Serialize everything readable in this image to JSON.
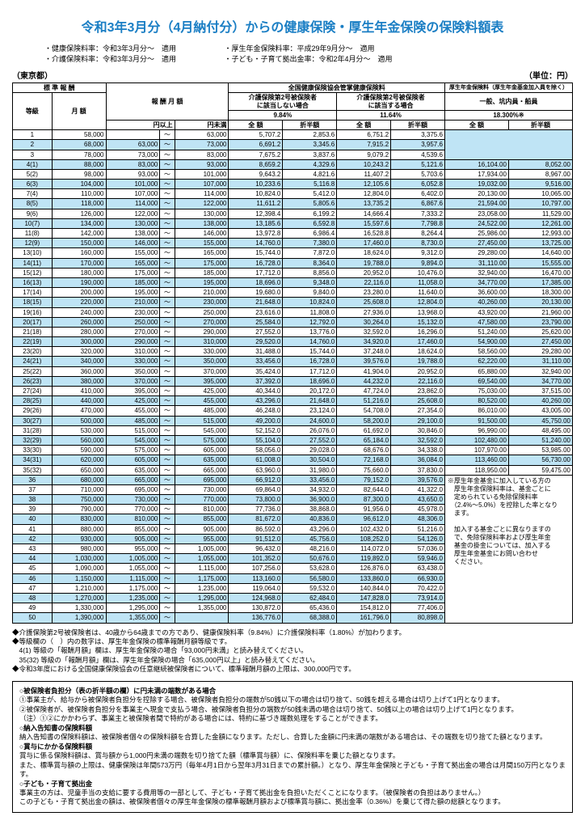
{
  "title": "令和3年3月分（4月納付分）からの健康保険・厚生年金保険の保険料額表",
  "topNotes": {
    "left": [
      "・健康保険料率：令和3年3月分～　適用",
      "・介護保険料率：令和3年3月分～　適用"
    ],
    "right": [
      "・厚生年金保険料率：平成29年9月分～　適用",
      "・子ども・子育て拠出金率：令和2年4月分～　適用"
    ]
  },
  "region": "（東京都）",
  "unit": "（単位：円）",
  "headers": {
    "std": "標 準 報 酬",
    "grade": "等級",
    "monthly": "月 額",
    "range": "報 酬 月 額",
    "kenpo": "全国健康保険協会管掌健康保険料",
    "noCare": "介護保険第2号被保険者\nに該当しない場合",
    "withCare": "介護保険第2号被保険者\nに該当する場合",
    "pension": "厚生年金保険料（厚生年金基金加入員を除く）",
    "general": "一般、坑内員・船員",
    "rate1": "9.84%",
    "rate2": "11.64%",
    "rate3": "18.300%※",
    "full": "全 額",
    "half": "折半額",
    "from": "円以上",
    "to": "円未満"
  },
  "rows": [
    {
      "g": "1",
      "m": "58,000",
      "f": "",
      "t": "63,000",
      "a": "5,707.2",
      "b": "2,853.6",
      "c": "6,751.2",
      "d": "3,375.6",
      "e": "",
      "h": ""
    },
    {
      "g": "2",
      "m": "68,000",
      "f": "63,000",
      "t": "73,000",
      "a": "6,691.2",
      "b": "3,345.6",
      "c": "7,915.2",
      "d": "3,957.6",
      "e": "",
      "h": ""
    },
    {
      "g": "3",
      "m": "78,000",
      "f": "73,000",
      "t": "83,000",
      "a": "7,675.2",
      "b": "3,837.6",
      "c": "9,079.2",
      "d": "4,539.6",
      "e": "",
      "h": ""
    },
    {
      "g": "4(1)",
      "m": "88,000",
      "f": "83,000",
      "t": "93,000",
      "a": "8,659.2",
      "b": "4,329.6",
      "c": "10,243.2",
      "d": "5,121.6",
      "e": "16,104.00",
      "h": "8,052.00"
    },
    {
      "g": "5(2)",
      "m": "98,000",
      "f": "93,000",
      "t": "101,000",
      "a": "9,643.2",
      "b": "4,821.6",
      "c": "11,407.2",
      "d": "5,703.6",
      "e": "17,934.00",
      "h": "8,967.00"
    },
    {
      "g": "6(3)",
      "m": "104,000",
      "f": "101,000",
      "t": "107,000",
      "a": "10,233.6",
      "b": "5,116.8",
      "c": "12,105.6",
      "d": "6,052.8",
      "e": "19,032.00",
      "h": "9,516.00"
    },
    {
      "g": "7(4)",
      "m": "110,000",
      "f": "107,000",
      "t": "114,000",
      "a": "10,824.0",
      "b": "5,412.0",
      "c": "12,804.0",
      "d": "6,402.0",
      "e": "20,130.00",
      "h": "10,065.00"
    },
    {
      "g": "8(5)",
      "m": "118,000",
      "f": "114,000",
      "t": "122,000",
      "a": "11,611.2",
      "b": "5,805.6",
      "c": "13,735.2",
      "d": "6,867.6",
      "e": "21,594.00",
      "h": "10,797.00"
    },
    {
      "g": "9(6)",
      "m": "126,000",
      "f": "122,000",
      "t": "130,000",
      "a": "12,398.4",
      "b": "6,199.2",
      "c": "14,666.4",
      "d": "7,333.2",
      "e": "23,058.00",
      "h": "11,529.00"
    },
    {
      "g": "10(7)",
      "m": "134,000",
      "f": "130,000",
      "t": "138,000",
      "a": "13,185.6",
      "b": "6,592.8",
      "c": "15,597.6",
      "d": "7,798.8",
      "e": "24,522.00",
      "h": "12,261.00"
    },
    {
      "g": "11(8)",
      "m": "142,000",
      "f": "138,000",
      "t": "146,000",
      "a": "13,972.8",
      "b": "6,986.4",
      "c": "16,528.8",
      "d": "8,264.4",
      "e": "25,986.00",
      "h": "12,993.00"
    },
    {
      "g": "12(9)",
      "m": "150,000",
      "f": "146,000",
      "t": "155,000",
      "a": "14,760.0",
      "b": "7,380.0",
      "c": "17,460.0",
      "d": "8,730.0",
      "e": "27,450.00",
      "h": "13,725.00"
    },
    {
      "g": "13(10)",
      "m": "160,000",
      "f": "155,000",
      "t": "165,000",
      "a": "15,744.0",
      "b": "7,872.0",
      "c": "18,624.0",
      "d": "9,312.0",
      "e": "29,280.00",
      "h": "14,640.00"
    },
    {
      "g": "14(11)",
      "m": "170,000",
      "f": "165,000",
      "t": "175,000",
      "a": "16,728.0",
      "b": "8,364.0",
      "c": "19,788.0",
      "d": "9,894.0",
      "e": "31,110.00",
      "h": "15,555.00"
    },
    {
      "g": "15(12)",
      "m": "180,000",
      "f": "175,000",
      "t": "185,000",
      "a": "17,712.0",
      "b": "8,856.0",
      "c": "20,952.0",
      "d": "10,476.0",
      "e": "32,940.00",
      "h": "16,470.00"
    },
    {
      "g": "16(13)",
      "m": "190,000",
      "f": "185,000",
      "t": "195,000",
      "a": "18,696.0",
      "b": "9,348.0",
      "c": "22,116.0",
      "d": "11,058.0",
      "e": "34,770.00",
      "h": "17,385.00"
    },
    {
      "g": "17(14)",
      "m": "200,000",
      "f": "195,000",
      "t": "210,000",
      "a": "19,680.0",
      "b": "9,840.0",
      "c": "23,280.0",
      "d": "11,640.0",
      "e": "36,600.00",
      "h": "18,300.00"
    },
    {
      "g": "18(15)",
      "m": "220,000",
      "f": "210,000",
      "t": "230,000",
      "a": "21,648.0",
      "b": "10,824.0",
      "c": "25,608.0",
      "d": "12,804.0",
      "e": "40,260.00",
      "h": "20,130.00"
    },
    {
      "g": "19(16)",
      "m": "240,000",
      "f": "230,000",
      "t": "250,000",
      "a": "23,616.0",
      "b": "11,808.0",
      "c": "27,936.0",
      "d": "13,968.0",
      "e": "43,920.00",
      "h": "21,960.00"
    },
    {
      "g": "20(17)",
      "m": "260,000",
      "f": "250,000",
      "t": "270,000",
      "a": "25,584.0",
      "b": "12,792.0",
      "c": "30,264.0",
      "d": "15,132.0",
      "e": "47,580.00",
      "h": "23,790.00"
    },
    {
      "g": "21(18)",
      "m": "280,000",
      "f": "270,000",
      "t": "290,000",
      "a": "27,552.0",
      "b": "13,776.0",
      "c": "32,592.0",
      "d": "16,296.0",
      "e": "51,240.00",
      "h": "25,620.00"
    },
    {
      "g": "22(19)",
      "m": "300,000",
      "f": "290,000",
      "t": "310,000",
      "a": "29,520.0",
      "b": "14,760.0",
      "c": "34,920.0",
      "d": "17,460.0",
      "e": "54,900.00",
      "h": "27,450.00"
    },
    {
      "g": "23(20)",
      "m": "320,000",
      "f": "310,000",
      "t": "330,000",
      "a": "31,488.0",
      "b": "15,744.0",
      "c": "37,248.0",
      "d": "18,624.0",
      "e": "58,560.00",
      "h": "29,280.00"
    },
    {
      "g": "24(21)",
      "m": "340,000",
      "f": "330,000",
      "t": "350,000",
      "a": "33,456.0",
      "b": "16,728.0",
      "c": "39,576.0",
      "d": "19,788.0",
      "e": "62,220.00",
      "h": "31,110.00"
    },
    {
      "g": "25(22)",
      "m": "360,000",
      "f": "350,000",
      "t": "370,000",
      "a": "35,424.0",
      "b": "17,712.0",
      "c": "41,904.0",
      "d": "20,952.0",
      "e": "65,880.00",
      "h": "32,940.00"
    },
    {
      "g": "26(23)",
      "m": "380,000",
      "f": "370,000",
      "t": "395,000",
      "a": "37,392.0",
      "b": "18,696.0",
      "c": "44,232.0",
      "d": "22,116.0",
      "e": "69,540.00",
      "h": "34,770.00"
    },
    {
      "g": "27(24)",
      "m": "410,000",
      "f": "395,000",
      "t": "425,000",
      "a": "40,344.0",
      "b": "20,172.0",
      "c": "47,724.0",
      "d": "23,862.0",
      "e": "75,030.00",
      "h": "37,515.00"
    },
    {
      "g": "28(25)",
      "m": "440,000",
      "f": "425,000",
      "t": "455,000",
      "a": "43,296.0",
      "b": "21,648.0",
      "c": "51,216.0",
      "d": "25,608.0",
      "e": "80,520.00",
      "h": "40,260.00"
    },
    {
      "g": "29(26)",
      "m": "470,000",
      "f": "455,000",
      "t": "485,000",
      "a": "46,248.0",
      "b": "23,124.0",
      "c": "54,708.0",
      "d": "27,354.0",
      "e": "86,010.00",
      "h": "43,005.00"
    },
    {
      "g": "30(27)",
      "m": "500,000",
      "f": "485,000",
      "t": "515,000",
      "a": "49,200.0",
      "b": "24,600.0",
      "c": "58,200.0",
      "d": "29,100.0",
      "e": "91,500.00",
      "h": "45,750.00"
    },
    {
      "g": "31(28)",
      "m": "530,000",
      "f": "515,000",
      "t": "545,000",
      "a": "52,152.0",
      "b": "26,076.0",
      "c": "61,692.0",
      "d": "30,846.0",
      "e": "96,990.00",
      "h": "48,495.00"
    },
    {
      "g": "32(29)",
      "m": "560,000",
      "f": "545,000",
      "t": "575,000",
      "a": "55,104.0",
      "b": "27,552.0",
      "c": "65,184.0",
      "d": "32,592.0",
      "e": "102,480.00",
      "h": "51,240.00"
    },
    {
      "g": "33(30)",
      "m": "590,000",
      "f": "575,000",
      "t": "605,000",
      "a": "58,056.0",
      "b": "29,028.0",
      "c": "68,676.0",
      "d": "34,338.0",
      "e": "107,970.00",
      "h": "53,985.00"
    },
    {
      "g": "34(31)",
      "m": "620,000",
      "f": "605,000",
      "t": "635,000",
      "a": "61,008.0",
      "b": "30,504.0",
      "c": "72,168.0",
      "d": "36,084.0",
      "e": "113,460.00",
      "h": "56,730.00"
    },
    {
      "g": "35(32)",
      "m": "650,000",
      "f": "635,000",
      "t": "665,000",
      "a": "63,960.0",
      "b": "31,980.0",
      "c": "75,660.0",
      "d": "37,830.0",
      "e": "118,950.00",
      "h": "59,475.00"
    },
    {
      "g": "36",
      "m": "680,000",
      "f": "665,000",
      "t": "695,000",
      "a": "66,912.0",
      "b": "33,456.0",
      "c": "79,152.0",
      "d": "39,576.0",
      "e": "",
      "h": ""
    },
    {
      "g": "37",
      "m": "710,000",
      "f": "695,000",
      "t": "730,000",
      "a": "69,864.0",
      "b": "34,932.0",
      "c": "82,644.0",
      "d": "41,322.0",
      "e": "",
      "h": "",
      "sideNote": true
    },
    {
      "g": "38",
      "m": "750,000",
      "f": "730,000",
      "t": "770,000",
      "a": "73,800.0",
      "b": "36,900.0",
      "c": "87,300.0",
      "d": "43,650.0",
      "e": "",
      "h": ""
    },
    {
      "g": "39",
      "m": "790,000",
      "f": "770,000",
      "t": "810,000",
      "a": "77,736.0",
      "b": "38,868.0",
      "c": "91,956.0",
      "d": "45,978.0",
      "e": "",
      "h": ""
    },
    {
      "g": "40",
      "m": "830,000",
      "f": "810,000",
      "t": "855,000",
      "a": "81,672.0",
      "b": "40,836.0",
      "c": "96,612.0",
      "d": "48,306.0",
      "e": "",
      "h": ""
    },
    {
      "g": "41",
      "m": "880,000",
      "f": "855,000",
      "t": "905,000",
      "a": "86,592.0",
      "b": "43,296.0",
      "c": "102,432.0",
      "d": "51,216.0",
      "e": "",
      "h": ""
    },
    {
      "g": "42",
      "m": "930,000",
      "f": "905,000",
      "t": "955,000",
      "a": "91,512.0",
      "b": "45,756.0",
      "c": "108,252.0",
      "d": "54,126.0",
      "e": "",
      "h": ""
    },
    {
      "g": "43",
      "m": "980,000",
      "f": "955,000",
      "t": "1,005,000",
      "a": "96,432.0",
      "b": "48,216.0",
      "c": "114,072.0",
      "d": "57,036.0",
      "e": "",
      "h": ""
    },
    {
      "g": "44",
      "m": "1,030,000",
      "f": "1,005,000",
      "t": "1,055,000",
      "a": "101,352.0",
      "b": "50,676.0",
      "c": "119,892.0",
      "d": "59,946.0",
      "e": "",
      "h": ""
    },
    {
      "g": "45",
      "m": "1,090,000",
      "f": "1,055,000",
      "t": "1,115,000",
      "a": "107,256.0",
      "b": "53,628.0",
      "c": "126,876.0",
      "d": "63,438.0",
      "e": "",
      "h": ""
    },
    {
      "g": "46",
      "m": "1,150,000",
      "f": "1,115,000",
      "t": "1,175,000",
      "a": "113,160.0",
      "b": "56,580.0",
      "c": "133,860.0",
      "d": "66,930.0",
      "e": "",
      "h": ""
    },
    {
      "g": "47",
      "m": "1,210,000",
      "f": "1,175,000",
      "t": "1,235,000",
      "a": "119,064.0",
      "b": "59,532.0",
      "c": "140,844.0",
      "d": "70,422.0",
      "e": "",
      "h": ""
    },
    {
      "g": "48",
      "m": "1,270,000",
      "f": "1,235,000",
      "t": "1,295,000",
      "a": "124,968.0",
      "b": "62,484.0",
      "c": "147,828.0",
      "d": "73,914.0",
      "e": "",
      "h": ""
    },
    {
      "g": "49",
      "m": "1,330,000",
      "f": "1,295,000",
      "t": "1,355,000",
      "a": "130,872.0",
      "b": "65,436.0",
      "c": "154,812.0",
      "d": "77,406.0",
      "e": "",
      "h": ""
    },
    {
      "g": "50",
      "m": "1,390,000",
      "f": "1,355,000",
      "t": "",
      "a": "136,776.0",
      "b": "68,388.0",
      "c": "161,796.0",
      "d": "80,898.0",
      "e": "",
      "h": ""
    }
  ],
  "sideNote": [
    "※厚生年金基金に加入している方の",
    "　厚生年金保険料率は、基金ごとに",
    "　定められている免除保険料率",
    "　（2.4%～5.0%）を控除した率となり",
    "　ます。",
    "",
    "　加入する基金ごとに異なりますの",
    "　で、免除保険料率および厚生年金",
    "　基金の掛金については、加入する",
    "　厚生年金基金にお問い合わせ",
    "　ください。"
  ],
  "diamonds": [
    "◆介護保険第2号被保険者は、40歳から64歳までの方であり、健康保険料率（9.84%）に介護保険料率（1.80%）が加わります。",
    "◆等級欄の（　）内の数字は、厚生年金保険の標準報酬月額等級です。",
    "　4(1) 等級の「報酬月額」欄は、厚生年金保険の場合「93,000円未満」と読み替えてください。",
    "　35(32) 等級の「報酬月額」欄は、厚生年金保険の場合「635,000円以上」と読み替えてください。",
    "◆令和3年度における全国健康保険協会の任意継続被保険者について、標準報酬月額の上限は、300,000円です。"
  ],
  "footerBox": {
    "s1h": "○被保険者負担分（表の折半額の欄）に円未満の端数がある場合",
    "s1": [
      "①事業主が、給与から被保険者負担分を控除する場合、被保険者負担分の端数が50銭以下の場合は切り捨て、50銭を超える場合は切り上げて1円となります。",
      "②被保険者が、被保険者負担分を事業主へ現金で支払う場合、被保険者負担分の端数が50銭未満の場合は切り捨て、50銭以上の場合は切り上げて1円となります。",
      "（注）①②にかかわらず、事業主と被保険者間で特約がある場合には、特約に基づき端数処理をすることができます。"
    ],
    "s2h": "○納入告知書の保険料額",
    "s2": [
      "納入告知書の保険料額は、被保険者個々の保険料額を合算した金額になります。ただし、合算した金額に円未満の端数がある場合は、その端数を切り捨てた額となります。"
    ],
    "s3h": "○賞与にかかる保険料額",
    "s3": [
      "賞与に係る保険料額は、賞与額から1,000円未満の端数を切り捨てた額（標準賞与額）に、保険料率を乗じた額となります。",
      "また、標準賞与額の上限は、健康保険は年間573万円（毎年4月1日から翌年3月31日までの累計額。）となり、厚生年金保険と子ども・子育て拠出金の場合は月間150万円となります。"
    ],
    "s4h": "○子ども・子育て拠出金",
    "s4": [
      "事業主の方は、児童手当の支給に要する費用等の一部として、子ども・子育て拠出金を負担いただくことになります。（被保険者の負担はありません。）",
      "この子ども・子育て拠出金の額は、被保険者個々の厚生年金保険の標準報酬月額および標準賞与額に、拠出金率（0.36%）を乗じて得た額の総額となります。"
    ]
  },
  "colors": {
    "title": "#1a7ec4",
    "highlight": "#bfe4f5",
    "border": "#000000"
  }
}
